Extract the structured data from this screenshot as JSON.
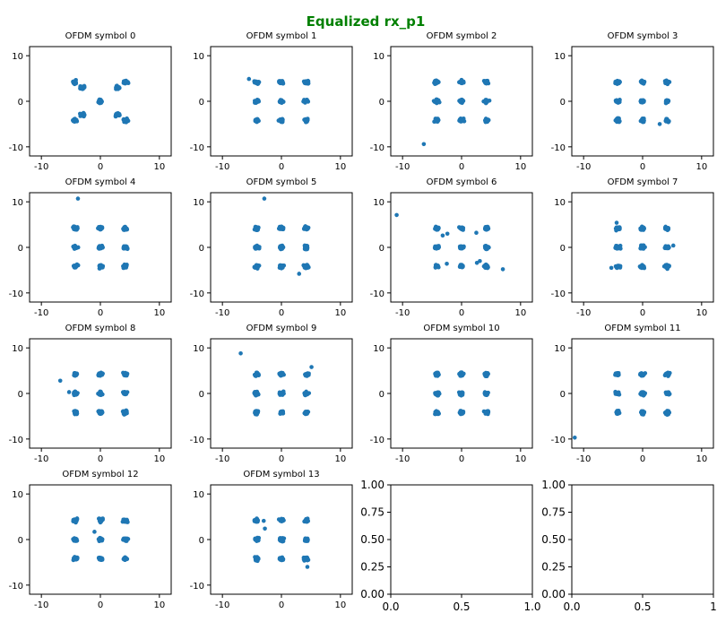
{
  "chart_data": {
    "type": "scatter",
    "suptitle": "Equalized rx_p1",
    "suptitle_color": "#008000",
    "marker_color": "#1f77b4",
    "grid": false,
    "layout": "4 rows x 4 columns",
    "subplots": [
      {
        "title": "OFDM symbol 0",
        "xlim": [
          -12,
          12
        ],
        "ylim": [
          -12,
          12
        ],
        "xticks": [
          -10,
          0,
          10
        ],
        "yticks": [
          -10,
          0,
          10
        ],
        "clusters": [
          [
            -4.3,
            4.2
          ],
          [
            -3,
            3
          ],
          [
            3,
            3
          ],
          [
            4.3,
            4.2
          ],
          [
            0,
            0
          ],
          [
            -4.3,
            -4.2
          ],
          [
            -3,
            -3
          ],
          [
            3,
            -3
          ],
          [
            4.3,
            -4.2
          ]
        ],
        "outliers": []
      },
      {
        "title": "OFDM symbol 1",
        "xlim": [
          -12,
          12
        ],
        "ylim": [
          -12,
          12
        ],
        "xticks": [
          -10,
          0,
          10
        ],
        "yticks": [
          -10,
          0,
          10
        ],
        "clusters": [
          [
            -4.2,
            4.2
          ],
          [
            0,
            4.2
          ],
          [
            4.2,
            4.2
          ],
          [
            -4.2,
            0
          ],
          [
            0,
            0
          ],
          [
            4.2,
            0
          ],
          [
            -4.2,
            -4.2
          ],
          [
            0,
            -4.2
          ],
          [
            4.2,
            -4.2
          ]
        ],
        "outliers": [
          [
            -5.5,
            4.9
          ]
        ]
      },
      {
        "title": "OFDM symbol 2",
        "xlim": [
          -12,
          12
        ],
        "ylim": [
          -12,
          12
        ],
        "xticks": [
          -10,
          0,
          10
        ],
        "yticks": [
          -10,
          0,
          10
        ],
        "clusters": [
          [
            -4.2,
            4.2
          ],
          [
            0,
            4.2
          ],
          [
            4.2,
            4.2
          ],
          [
            -4.2,
            0
          ],
          [
            0,
            0
          ],
          [
            4.2,
            0
          ],
          [
            -4.2,
            -4.2
          ],
          [
            0,
            -4.2
          ],
          [
            4.2,
            -4.2
          ]
        ],
        "outliers": [
          [
            -6.4,
            -9.4
          ]
        ]
      },
      {
        "title": "OFDM symbol 3",
        "xlim": [
          -12,
          12
        ],
        "ylim": [
          -12,
          12
        ],
        "xticks": [
          -10,
          0,
          10
        ],
        "yticks": [
          -10,
          0,
          10
        ],
        "clusters": [
          [
            -4.2,
            4.2
          ],
          [
            0,
            4.2
          ],
          [
            4.2,
            4.2
          ],
          [
            -4.2,
            0
          ],
          [
            0,
            0
          ],
          [
            4.2,
            0
          ],
          [
            -4.2,
            -4.2
          ],
          [
            0,
            -4.2
          ],
          [
            4.2,
            -4.2
          ]
        ],
        "outliers": [
          [
            2.9,
            -5.0
          ]
        ]
      },
      {
        "title": "OFDM symbol 4",
        "xlim": [
          -12,
          12
        ],
        "ylim": [
          -12,
          12
        ],
        "xticks": [
          -10,
          0,
          10
        ],
        "yticks": [
          -10,
          0,
          10
        ],
        "clusters": [
          [
            -4.2,
            4.2
          ],
          [
            0,
            4.2
          ],
          [
            4.2,
            4.2
          ],
          [
            -4.2,
            0
          ],
          [
            0,
            0
          ],
          [
            4.2,
            0
          ],
          [
            -4.2,
            -4.2
          ],
          [
            0,
            -4.2
          ],
          [
            4.2,
            -4.2
          ]
        ],
        "outliers": [
          [
            -3.8,
            10.7
          ]
        ]
      },
      {
        "title": "OFDM symbol 5",
        "xlim": [
          -12,
          12
        ],
        "ylim": [
          -12,
          12
        ],
        "xticks": [
          -10,
          0,
          10
        ],
        "yticks": [
          -10,
          0,
          10
        ],
        "clusters": [
          [
            -4.2,
            4.2
          ],
          [
            0,
            4.2
          ],
          [
            4.2,
            4.2
          ],
          [
            -4.2,
            0
          ],
          [
            0,
            0
          ],
          [
            4.2,
            0
          ],
          [
            -4.2,
            -4.2
          ],
          [
            0,
            -4.2
          ],
          [
            4.2,
            -4.2
          ]
        ],
        "outliers": [
          [
            -2.9,
            10.7
          ],
          [
            3.0,
            -5.8
          ]
        ]
      },
      {
        "title": "OFDM symbol 6",
        "xlim": [
          -12,
          12
        ],
        "ylim": [
          -12,
          12
        ],
        "xticks": [
          -10,
          0,
          10
        ],
        "yticks": [
          -10,
          0,
          10
        ],
        "clusters": [
          [
            -4.2,
            4.2
          ],
          [
            0,
            4.2
          ],
          [
            4.2,
            4.2
          ],
          [
            -4.2,
            0
          ],
          [
            0,
            0
          ],
          [
            4.2,
            0
          ],
          [
            -4.2,
            -4.2
          ],
          [
            0,
            -4.2
          ],
          [
            4.2,
            -4.2
          ]
        ],
        "outliers": [
          [
            -11,
            7.1
          ],
          [
            7.0,
            -4.8
          ],
          [
            -2.5,
            -3.6
          ],
          [
            2.5,
            3.2
          ],
          [
            -2.4,
            3.0
          ],
          [
            3.1,
            -3.0
          ],
          [
            -3.2,
            2.6
          ],
          [
            2.6,
            -3.4
          ]
        ]
      },
      {
        "title": "OFDM symbol 7",
        "xlim": [
          -12,
          12
        ],
        "ylim": [
          -12,
          12
        ],
        "xticks": [
          -10,
          0,
          10
        ],
        "yticks": [
          -10,
          0,
          10
        ],
        "clusters": [
          [
            -4.2,
            4.2
          ],
          [
            0,
            4.2
          ],
          [
            4.2,
            4.2
          ],
          [
            -4.2,
            0
          ],
          [
            0,
            0
          ],
          [
            4.2,
            0
          ],
          [
            -4.2,
            -4.2
          ],
          [
            0,
            -4.2
          ],
          [
            4.2,
            -4.2
          ]
        ],
        "outliers": [
          [
            -4.4,
            5.4
          ],
          [
            5.2,
            0.4
          ],
          [
            -5.3,
            -4.5
          ]
        ]
      },
      {
        "title": "OFDM symbol 8",
        "xlim": [
          -12,
          12
        ],
        "ylim": [
          -12,
          12
        ],
        "xticks": [
          -10,
          0,
          10
        ],
        "yticks": [
          -10,
          0,
          10
        ],
        "clusters": [
          [
            -4.2,
            4.2
          ],
          [
            0,
            4.2
          ],
          [
            4.2,
            4.2
          ],
          [
            -4.2,
            0
          ],
          [
            0,
            0
          ],
          [
            4.2,
            0
          ],
          [
            -4.2,
            -4.2
          ],
          [
            0,
            -4.2
          ],
          [
            4.2,
            -4.2
          ]
        ],
        "outliers": [
          [
            -6.8,
            2.8
          ],
          [
            -5.3,
            0.3
          ]
        ]
      },
      {
        "title": "OFDM symbol 9",
        "xlim": [
          -12,
          12
        ],
        "ylim": [
          -12,
          12
        ],
        "xticks": [
          -10,
          0,
          10
        ],
        "yticks": [
          -10,
          0,
          10
        ],
        "clusters": [
          [
            -4.2,
            4.2
          ],
          [
            0,
            4.2
          ],
          [
            4.2,
            4.2
          ],
          [
            -4.2,
            0
          ],
          [
            0,
            0
          ],
          [
            4.2,
            0
          ],
          [
            -4.2,
            -4.2
          ],
          [
            0,
            -4.2
          ],
          [
            4.2,
            -4.2
          ]
        ],
        "outliers": [
          [
            -6.9,
            8.8
          ],
          [
            5.1,
            5.8
          ]
        ]
      },
      {
        "title": "OFDM symbol 10",
        "xlim": [
          -12,
          12
        ],
        "ylim": [
          -12,
          12
        ],
        "xticks": [
          -10,
          0,
          10
        ],
        "yticks": [
          -10,
          0,
          10
        ],
        "clusters": [
          [
            -4.2,
            4.2
          ],
          [
            0,
            4.2
          ],
          [
            4.2,
            4.2
          ],
          [
            -4.2,
            0
          ],
          [
            0,
            0
          ],
          [
            4.2,
            0
          ],
          [
            -4.2,
            -4.2
          ],
          [
            0,
            -4.2
          ],
          [
            4.2,
            -4.2
          ]
        ],
        "outliers": []
      },
      {
        "title": "OFDM symbol 11",
        "xlim": [
          -12,
          12
        ],
        "ylim": [
          -12,
          12
        ],
        "xticks": [
          -10,
          0,
          10
        ],
        "yticks": [
          -10,
          0,
          10
        ],
        "clusters": [
          [
            -4.2,
            4.2
          ],
          [
            0,
            4.2
          ],
          [
            4.2,
            4.2
          ],
          [
            -4.2,
            0
          ],
          [
            0,
            0
          ],
          [
            4.2,
            0
          ],
          [
            -4.2,
            -4.2
          ],
          [
            0,
            -4.2
          ],
          [
            4.2,
            -4.2
          ]
        ],
        "outliers": [
          [
            -11.5,
            -9.7
          ]
        ]
      },
      {
        "title": "OFDM symbol 12",
        "xlim": [
          -12,
          12
        ],
        "ylim": [
          -12,
          12
        ],
        "xticks": [
          -10,
          0,
          10
        ],
        "yticks": [
          -10,
          0,
          10
        ],
        "clusters": [
          [
            -4.2,
            4.2
          ],
          [
            0,
            4.2
          ],
          [
            4.2,
            4.2
          ],
          [
            -4.2,
            0
          ],
          [
            0,
            0
          ],
          [
            4.2,
            0
          ],
          [
            -4.2,
            -4.2
          ],
          [
            0,
            -4.2
          ],
          [
            4.2,
            -4.2
          ]
        ],
        "outliers": [
          [
            -1.0,
            1.7
          ]
        ]
      },
      {
        "title": "OFDM symbol 13",
        "xlim": [
          -12,
          12
        ],
        "ylim": [
          -12,
          12
        ],
        "xticks": [
          -10,
          0,
          10
        ],
        "yticks": [
          -10,
          0,
          10
        ],
        "clusters": [
          [
            -4.2,
            4.2
          ],
          [
            0,
            4.2
          ],
          [
            4.2,
            4.2
          ],
          [
            -4.2,
            0
          ],
          [
            0,
            0
          ],
          [
            4.2,
            0
          ],
          [
            -4.2,
            -4.2
          ],
          [
            0,
            -4.2
          ],
          [
            4.2,
            -4.2
          ]
        ],
        "outliers": [
          [
            -3.0,
            4.1
          ],
          [
            -2.8,
            2.4
          ],
          [
            4.4,
            -6.0
          ]
        ]
      },
      {
        "title": "",
        "empty": true,
        "xlim": [
          0,
          1
        ],
        "ylim": [
          0,
          1
        ],
        "xticks": [
          0.0,
          0.5,
          1.0
        ],
        "yticks": [
          0.0,
          0.25,
          0.5,
          0.75,
          1.0
        ],
        "xtick_labels": [
          "0.0",
          "0.5",
          "1.0"
        ],
        "ytick_labels": [
          "0.00",
          "0.25",
          "0.50",
          "0.75",
          "1.00"
        ]
      },
      {
        "title": "",
        "empty": true,
        "xlim": [
          0,
          1
        ],
        "ylim": [
          0,
          1
        ],
        "xticks": [
          0.0,
          0.5,
          1.0
        ],
        "yticks": [
          0.0,
          0.25,
          0.5,
          0.75,
          1.0
        ],
        "xtick_labels": [
          "0.0",
          "0.5",
          "1"
        ],
        "ytick_labels": [
          "0.00",
          "0.25",
          "0.50",
          "0.75",
          "1.00"
        ]
      }
    ]
  }
}
